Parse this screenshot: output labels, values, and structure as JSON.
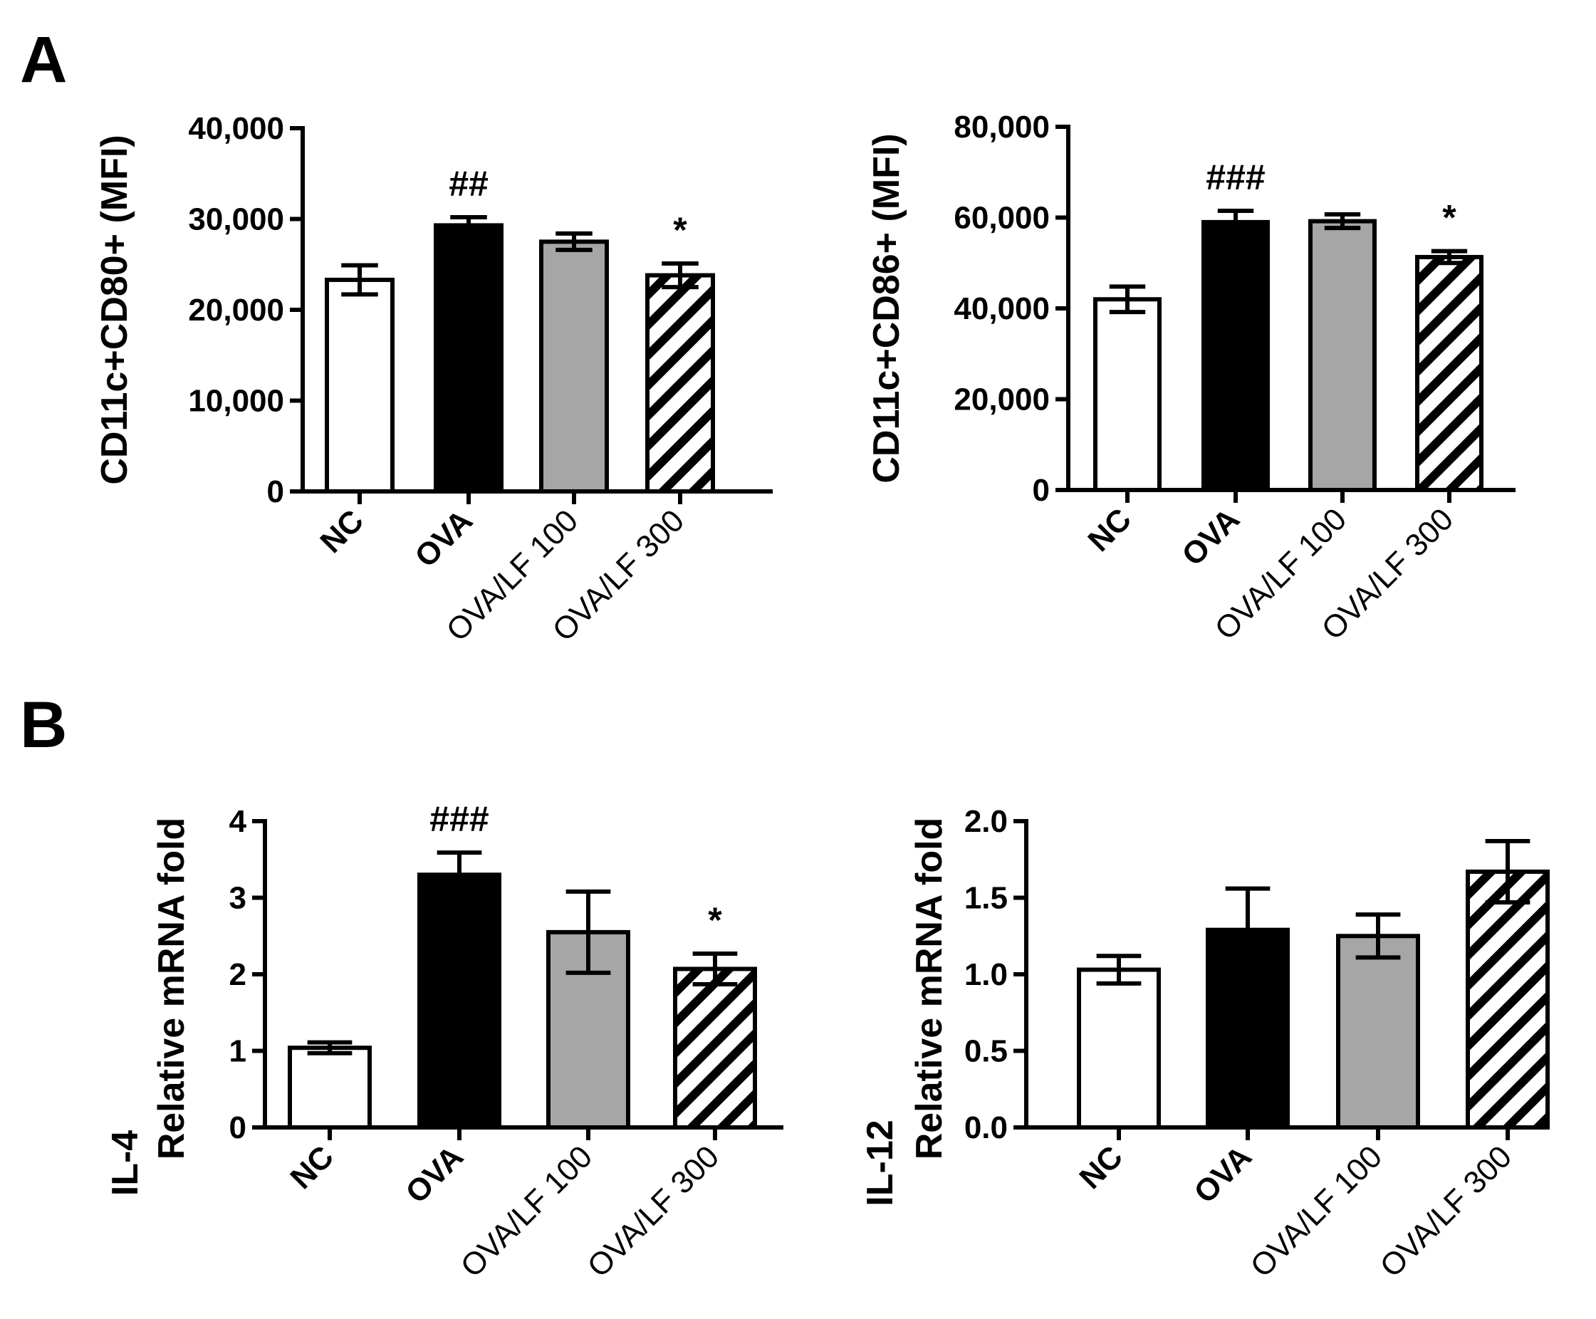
{
  "panels": [
    {
      "label": "A"
    },
    {
      "label": "B"
    }
  ],
  "colors": {
    "axis": "#000000",
    "white_bar": "#ffffff",
    "black_bar": "#000000",
    "gray_bar": "#a6a6a6",
    "hatch": "#000000"
  },
  "chart_data": [
    {
      "type": "bar",
      "panel": "A",
      "ylabel": "CD11c+CD80+ (MFI)",
      "ylim": [
        0,
        40000
      ],
      "yticks": [
        0,
        10000,
        20000,
        30000,
        40000
      ],
      "ytick_labels": [
        "0",
        "10,000",
        "20,000",
        "30,000",
        "40,000"
      ],
      "categories": [
        "NC",
        "OVA",
        "OVA/LF 100",
        "OVA/LF 300"
      ],
      "values": [
        23300,
        29300,
        27500,
        23800
      ],
      "errors": [
        1600,
        900,
        900,
        1300
      ],
      "fills": [
        "white",
        "black",
        "gray",
        "hatch"
      ],
      "significance": [
        "",
        "##",
        "",
        "*"
      ]
    },
    {
      "type": "bar",
      "panel": "A",
      "ylabel": "CD11c+CD86+ (MFI)",
      "ylim": [
        0,
        80000
      ],
      "yticks": [
        0,
        20000,
        40000,
        60000,
        80000
      ],
      "ytick_labels": [
        "0",
        "20,000",
        "40,000",
        "60,000",
        "80,000"
      ],
      "categories": [
        "NC",
        "OVA",
        "OVA/LF 100",
        "OVA/LF 300"
      ],
      "values": [
        42000,
        59000,
        59200,
        51300
      ],
      "errors": [
        2800,
        2500,
        1500,
        1300
      ],
      "fills": [
        "white",
        "black",
        "gray",
        "hatch"
      ],
      "significance": [
        "",
        "###",
        "",
        "*"
      ]
    },
    {
      "type": "bar",
      "panel": "B",
      "ylabel": "IL-4",
      "ylabel2": "Relative mRNA fold",
      "ylim": [
        0,
        4
      ],
      "yticks": [
        0,
        1,
        2,
        3,
        4
      ],
      "ytick_labels": [
        "0",
        "1",
        "2",
        "3",
        "4"
      ],
      "categories": [
        "NC",
        "OVA",
        "OVA/LF 100",
        "OVA/LF 300"
      ],
      "values": [
        1.04,
        3.3,
        2.55,
        2.07
      ],
      "errors": [
        0.07,
        0.29,
        0.53,
        0.2
      ],
      "fills": [
        "white",
        "black",
        "gray",
        "hatch"
      ],
      "significance": [
        "",
        "###",
        "",
        "*"
      ]
    },
    {
      "type": "bar",
      "panel": "B",
      "ylabel": "IL-12",
      "ylabel2": "Relative mRNA fold",
      "ylim": [
        0,
        2.0
      ],
      "yticks": [
        0,
        0.5,
        1.0,
        1.5,
        2.0
      ],
      "ytick_labels": [
        "0.0",
        "0.5",
        "1.0",
        "1.5",
        "2.0"
      ],
      "categories": [
        "NC",
        "OVA",
        "OVA/LF 100",
        "OVA/LF 300"
      ],
      "values": [
        1.03,
        1.29,
        1.25,
        1.67
      ],
      "errors": [
        0.09,
        0.27,
        0.14,
        0.2
      ],
      "fills": [
        "white",
        "black",
        "gray",
        "hatch"
      ],
      "significance": [
        "",
        "",
        "",
        ""
      ]
    }
  ]
}
